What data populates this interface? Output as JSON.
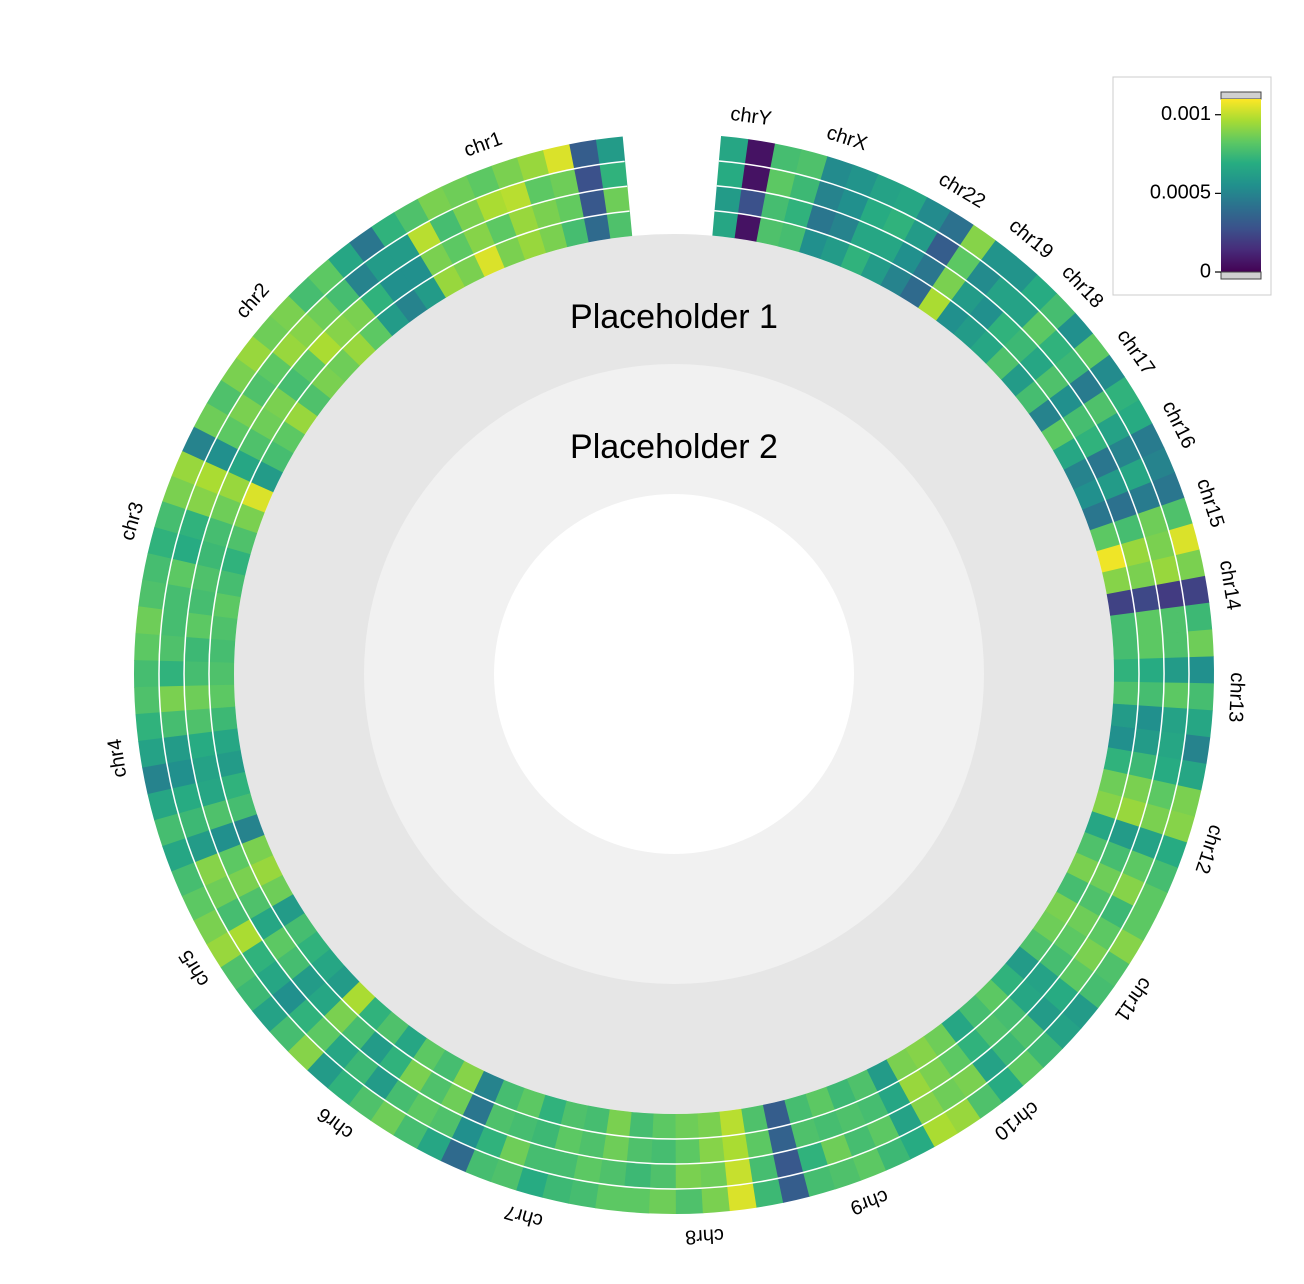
{
  "chart_data": {
    "type": "heatmap",
    "layout": "circular",
    "placeholders": [
      "Placeholder 1",
      "Placeholder 2"
    ],
    "tracks": 4,
    "colorscale": "viridis",
    "color_range": [
      0,
      0.0011
    ],
    "colorbar": {
      "ticks": [
        0,
        0.0005,
        0.001
      ],
      "tick_labels": [
        "0",
        "0.0005",
        "0.001"
      ]
    },
    "chromosomes": [
      {
        "name": "chr1",
        "bins": [
          [
            0.72,
            0.35,
            0.7,
            0.8,
            0.85,
            0.8,
            0.95,
            0.8,
            0.85,
            0.55
          ],
          [
            0.78,
            0.28,
            0.76,
            0.8,
            0.85,
            0.75,
            0.82,
            0.75,
            0.8,
            0.5
          ],
          [
            0.65,
            0.25,
            0.78,
            0.75,
            0.9,
            0.88,
            0.8,
            0.7,
            0.9,
            0.55
          ],
          [
            0.55,
            0.3,
            0.95,
            0.85,
            0.8,
            0.75,
            0.78,
            0.8,
            0.72,
            0.65
          ]
        ]
      },
      {
        "name": "chr2",
        "bins": [
          [
            0.45,
            0.55,
            0.75,
            0.85,
            0.78,
            0.8,
            0.72,
            0.85,
            0.75,
            0.7
          ],
          [
            0.5,
            0.65,
            0.8,
            0.82,
            0.88,
            0.75,
            0.7,
            0.8,
            0.78,
            0.72
          ],
          [
            0.55,
            0.45,
            0.7,
            0.78,
            0.82,
            0.85,
            0.75,
            0.72,
            0.8,
            0.75
          ],
          [
            0.4,
            0.6,
            0.75,
            0.7,
            0.8,
            0.78,
            0.85,
            0.8,
            0.72,
            0.78
          ]
        ]
      },
      {
        "name": "chr3",
        "bins": [
          [
            0.55,
            0.95,
            0.8,
            0.72,
            0.65,
            0.7,
            0.75,
            0.72
          ],
          [
            0.6,
            0.85,
            0.78,
            0.7,
            0.68,
            0.72,
            0.7,
            0.75
          ],
          [
            0.5,
            0.88,
            0.82,
            0.65,
            0.62,
            0.75,
            0.7,
            0.7
          ],
          [
            0.45,
            0.85,
            0.8,
            0.7,
            0.65,
            0.7,
            0.72,
            0.78
          ]
        ]
      },
      {
        "name": "chr4",
        "bins": [
          [
            0.7,
            0.72,
            0.75,
            0.68,
            0.6,
            0.55,
            0.65,
            0.7,
            0.45
          ],
          [
            0.68,
            0.7,
            0.78,
            0.72,
            0.62,
            0.58,
            0.6,
            0.72,
            0.5
          ],
          [
            0.72,
            0.65,
            0.8,
            0.7,
            0.55,
            0.5,
            0.62,
            0.68,
            0.55
          ],
          [
            0.75,
            0.7,
            0.72,
            0.65,
            0.58,
            0.45,
            0.6,
            0.7,
            0.6
          ]
        ]
      },
      {
        "name": "chr5",
        "bins": [
          [
            0.8,
            0.85,
            0.78,
            0.55,
            0.7,
            0.65,
            0.6
          ],
          [
            0.75,
            0.8,
            0.72,
            0.6,
            0.75,
            0.7,
            0.55
          ],
          [
            0.82,
            0.78,
            0.7,
            0.88,
            0.65,
            0.6,
            0.5
          ],
          [
            0.7,
            0.75,
            0.8,
            0.85,
            0.72,
            0.68,
            0.58
          ]
        ]
      },
      {
        "name": "chr6",
        "bins": [
          [
            0.55,
            0.88,
            0.65,
            0.72,
            0.6,
            0.75,
            0.7,
            0.82
          ],
          [
            0.6,
            0.8,
            0.7,
            0.55,
            0.65,
            0.8,
            0.72,
            0.78
          ],
          [
            0.65,
            0.75,
            0.6,
            0.68,
            0.55,
            0.7,
            0.75,
            0.72
          ],
          [
            0.7,
            0.82,
            0.55,
            0.65,
            0.72,
            0.78,
            0.7,
            0.6
          ]
        ]
      },
      {
        "name": "chr7",
        "bins": [
          [
            0.45,
            0.7,
            0.75,
            0.65,
            0.72,
            0.7,
            0.8
          ],
          [
            0.4,
            0.72,
            0.7,
            0.68,
            0.75,
            0.72,
            0.78
          ],
          [
            0.5,
            0.65,
            0.78,
            0.7,
            0.7,
            0.75,
            0.72
          ],
          [
            0.35,
            0.7,
            0.72,
            0.62,
            0.68,
            0.7,
            0.75
          ]
        ]
      },
      {
        "name": "chr8",
        "bins": [
          [
            0.7,
            0.75,
            0.78,
            0.8,
            0.9,
            0.72
          ],
          [
            0.72,
            0.7,
            0.75,
            0.82,
            0.88,
            0.75
          ],
          [
            0.68,
            0.72,
            0.8,
            0.78,
            0.92,
            0.7
          ],
          [
            0.75,
            0.78,
            0.72,
            0.8,
            0.95,
            0.68
          ]
        ]
      },
      {
        "name": "chr9",
        "bins": [
          [
            0.3,
            0.7,
            0.75,
            0.68,
            0.72,
            0.55
          ],
          [
            0.32,
            0.72,
            0.7,
            0.72,
            0.7,
            0.6
          ],
          [
            0.28,
            0.65,
            0.78,
            0.7,
            0.75,
            0.58
          ],
          [
            0.3,
            0.7,
            0.72,
            0.75,
            0.68,
            0.62
          ]
        ]
      },
      {
        "name": "chr10",
        "bins": [
          [
            0.8,
            0.82,
            0.78,
            0.6,
            0.7,
            0.75
          ],
          [
            0.85,
            0.8,
            0.75,
            0.65,
            0.72,
            0.7
          ],
          [
            0.82,
            0.78,
            0.8,
            0.58,
            0.68,
            0.72
          ],
          [
            0.88,
            0.85,
            0.72,
            0.62,
            0.75,
            0.68
          ]
        ]
      },
      {
        "name": "chr11",
        "bins": [
          [
            0.65,
            0.55,
            0.72,
            0.78,
            0.8,
            0.7
          ],
          [
            0.6,
            0.58,
            0.7,
            0.75,
            0.78,
            0.72
          ],
          [
            0.55,
            0.62,
            0.75,
            0.8,
            0.75,
            0.68
          ],
          [
            0.58,
            0.55,
            0.7,
            0.72,
            0.82,
            0.75
          ]
        ]
      },
      {
        "name": "chr12",
        "bins": [
          [
            0.8,
            0.72,
            0.6,
            0.82,
            0.78,
            0.65
          ],
          [
            0.78,
            0.7,
            0.55,
            0.85,
            0.8,
            0.68
          ],
          [
            0.82,
            0.75,
            0.58,
            0.8,
            0.75,
            0.62
          ],
          [
            0.75,
            0.7,
            0.62,
            0.82,
            0.8,
            0.6
          ]
        ]
      },
      {
        "name": "chr13",
        "bins": [
          [
            0.5,
            0.55,
            0.72,
            0.65,
            0.7
          ],
          [
            0.55,
            0.5,
            0.7,
            0.62,
            0.75
          ],
          [
            0.6,
            0.58,
            0.75,
            0.55,
            0.72
          ],
          [
            0.45,
            0.6,
            0.7,
            0.5,
            0.78
          ]
        ]
      },
      {
        "name": "chr14",
        "bins": [
          [
            0.7,
            0.2,
            0.82
          ],
          [
            0.75,
            0.22,
            0.8
          ],
          [
            0.72,
            0.18,
            0.85
          ],
          [
            0.68,
            0.2,
            0.8
          ]
        ]
      },
      {
        "name": "chr15",
        "bins": [
          [
            0.98,
            0.75,
            0.4
          ],
          [
            0.85,
            0.7,
            0.38
          ],
          [
            0.8,
            0.78,
            0.42
          ],
          [
            0.95,
            0.72,
            0.4
          ]
        ]
      },
      {
        "name": "chr16",
        "bins": [
          [
            0.5,
            0.45,
            0.6
          ],
          [
            0.55,
            0.4,
            0.65
          ],
          [
            0.6,
            0.45,
            0.58
          ],
          [
            0.45,
            0.42,
            0.62
          ]
        ]
      },
      {
        "name": "chr17",
        "bins": [
          [
            0.75,
            0.45,
            0.7
          ],
          [
            0.7,
            0.5,
            0.72
          ],
          [
            0.72,
            0.42,
            0.68
          ],
          [
            0.65,
            0.48,
            0.75
          ]
        ]
      },
      {
        "name": "chr18",
        "bins": [
          [
            0.55,
            0.72,
            0.6
          ],
          [
            0.6,
            0.68,
            0.65
          ],
          [
            0.65,
            0.75,
            0.58
          ],
          [
            0.5,
            0.7,
            0.62
          ]
        ]
      },
      {
        "name": "chr19",
        "bins": [
          [
            0.55,
            0.5
          ],
          [
            0.5,
            0.55
          ],
          [
            0.58,
            0.48
          ],
          [
            0.52,
            0.52
          ]
        ]
      },
      {
        "name": "chr22",
        "bins": [
          [
            0.88,
            0.35,
            0.45,
            0.55
          ],
          [
            0.8,
            0.4,
            0.5,
            0.6
          ],
          [
            0.75,
            0.3,
            0.55,
            0.65
          ],
          [
            0.82,
            0.38,
            0.48,
            0.6
          ]
        ]
      },
      {
        "name": "chrX",
        "bins": [
          [
            0.65,
            0.55,
            0.5,
            0.7,
            0.72
          ],
          [
            0.6,
            0.45,
            0.4,
            0.65,
            0.7
          ],
          [
            0.62,
            0.5,
            0.45,
            0.68,
            0.75
          ],
          [
            0.58,
            0.52,
            0.48,
            0.72,
            0.7
          ]
        ]
      },
      {
        "name": "chrY",
        "bins": [
          [
            0.05,
            0.6
          ],
          [
            0.25,
            0.55
          ],
          [
            0.05,
            0.62
          ],
          [
            0.05,
            0.6
          ]
        ]
      }
    ]
  }
}
